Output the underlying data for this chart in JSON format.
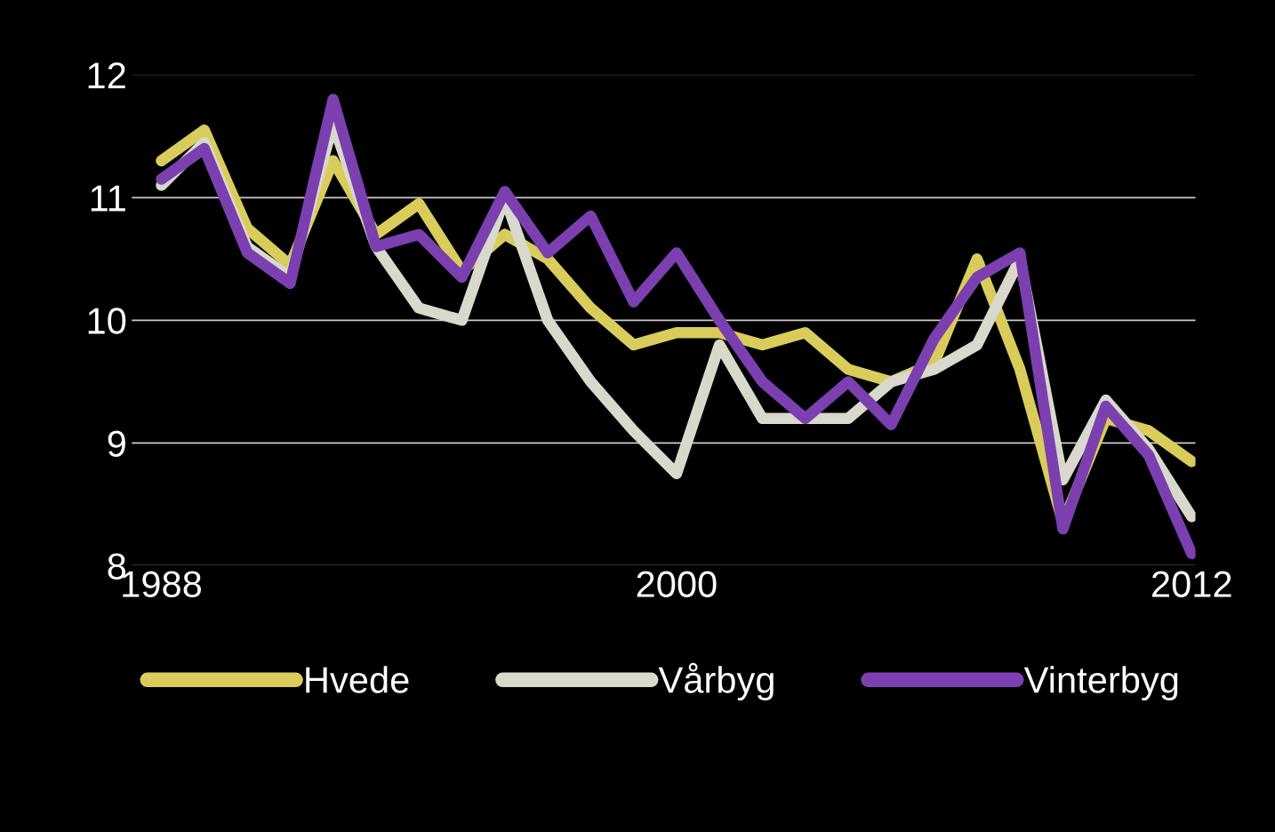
{
  "chart_data": {
    "type": "line",
    "x": [
      1988,
      1989,
      1990,
      1991,
      1992,
      1993,
      1994,
      1995,
      1996,
      1997,
      1998,
      1999,
      2000,
      2001,
      2002,
      2003,
      2004,
      2005,
      2006,
      2007,
      2008,
      2009,
      2010,
      2011,
      2012
    ],
    "series": [
      {
        "name": "Hvede",
        "color": "#d9cc5a",
        "values": [
          11.3,
          11.55,
          10.75,
          10.45,
          11.3,
          10.7,
          10.95,
          10.4,
          10.7,
          10.5,
          10.1,
          9.8,
          9.9,
          9.9,
          9.8,
          9.9,
          9.6,
          9.5,
          9.65,
          10.5,
          9.6,
          8.35,
          9.2,
          9.1,
          8.85
        ]
      },
      {
        "name": "Vårbyg",
        "color": "#d8d8cc",
        "values": [
          11.1,
          11.45,
          10.6,
          10.35,
          11.6,
          10.6,
          10.1,
          10.0,
          11.0,
          10.0,
          9.5,
          9.1,
          8.75,
          9.8,
          9.2,
          9.2,
          9.2,
          9.5,
          9.6,
          9.8,
          10.5,
          8.7,
          9.35,
          8.95,
          8.4
        ]
      },
      {
        "name": "Vinterbyg",
        "color": "#7b3fb0",
        "values": [
          11.15,
          11.4,
          10.55,
          10.3,
          11.8,
          10.6,
          10.7,
          10.35,
          11.05,
          10.55,
          10.85,
          10.15,
          10.55,
          10.0,
          9.5,
          9.2,
          9.5,
          9.15,
          9.85,
          10.35,
          10.55,
          8.3,
          9.3,
          8.9,
          8.1
        ]
      }
    ],
    "xlim": [
      1987.3,
      2012.1
    ],
    "xticks": [
      1988,
      2000,
      2012
    ],
    "ylim": [
      8,
      12
    ],
    "yticks": [
      8,
      9,
      10,
      11,
      12
    ],
    "grid": "y",
    "legend": "bottom",
    "marker": "none",
    "line_style": "solid"
  }
}
